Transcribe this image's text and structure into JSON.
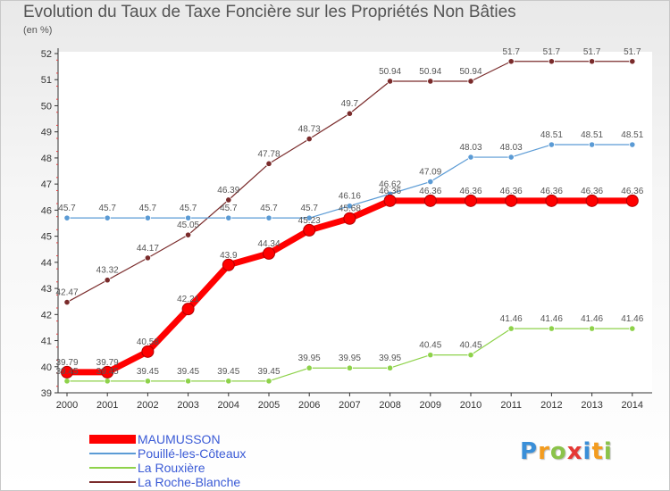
{
  "chart_data": {
    "type": "line",
    "title": "Evolution du Taux de Taxe Foncière sur les Propriétés Non Bâties",
    "ylabel": "(en %)",
    "xlabel": "",
    "ylim": [
      39,
      52
    ],
    "yticks": [
      39,
      40,
      41,
      42,
      43,
      44,
      45,
      46,
      47,
      48,
      49,
      50,
      51,
      52
    ],
    "x": [
      "2000",
      "2001",
      "2002",
      "2003",
      "2004",
      "2005",
      "2006",
      "2007",
      "2008",
      "2009",
      "2010",
      "2011",
      "2012",
      "2013",
      "2014"
    ],
    "grid": false,
    "legend_position": "bottom-left",
    "series": [
      {
        "name": "MAUMUSSON",
        "color": "#ff0000",
        "values": [
          39.79,
          39.79,
          40.58,
          42.21,
          43.9,
          44.34,
          45.23,
          45.68,
          46.36,
          46.36,
          46.36,
          46.36,
          46.36,
          46.36,
          46.36
        ],
        "labels": [
          "39.79",
          "39.79",
          "40.58",
          "42.21",
          "43.9",
          "44.34",
          "45.23",
          "45.68",
          "46.36",
          "46.36",
          "46.36",
          "46.36",
          "46.36",
          "46.36",
          "46.36"
        ]
      },
      {
        "name": "Pouillé-les-Côteaux",
        "color": "#5b9bd5",
        "values": [
          45.7,
          45.7,
          45.7,
          45.7,
          45.7,
          45.7,
          45.7,
          46.16,
          46.62,
          47.09,
          48.03,
          48.03,
          48.51,
          48.51,
          48.51
        ],
        "labels": [
          "45.7",
          "45.7",
          "45.7",
          "45.7",
          "45.7",
          "45.7",
          "45.7",
          "46.16",
          "46.62",
          "47.09",
          "48.03",
          "48.03",
          "48.51",
          "48.51",
          "48.51"
        ]
      },
      {
        "name": "La Rouxière",
        "color": "#8ed24a",
        "values": [
          39.45,
          39.45,
          39.45,
          39.45,
          39.45,
          39.45,
          39.95,
          39.95,
          39.95,
          40.45,
          40.45,
          41.46,
          41.46,
          41.46,
          41.46
        ],
        "labels": [
          "39.45",
          "39.45",
          "39.45",
          "39.45",
          "39.45",
          "39.45",
          "39.95",
          "39.95",
          "39.95",
          "40.45",
          "40.45",
          "41.46",
          "41.46",
          "41.46",
          "41.46"
        ]
      },
      {
        "name": "La Roche-Blanche",
        "color": "#7a2b2b",
        "values": [
          42.47,
          43.32,
          44.17,
          45.05,
          46.39,
          47.78,
          48.73,
          49.7,
          50.94,
          50.94,
          50.94,
          51.7,
          51.7,
          51.7,
          51.7
        ],
        "labels": [
          "42.47",
          "43.32",
          "44.17",
          "45.05",
          "46.39",
          "47.78",
          "48.73",
          "49.7",
          "50.94",
          "50.94",
          "50.94",
          "51.7",
          "51.7",
          "51.7",
          "51.7"
        ]
      }
    ]
  },
  "logo": {
    "letters": [
      "P",
      "r",
      "o",
      "x",
      "i",
      "t",
      "i"
    ],
    "colors": [
      "#3a8fd8",
      "#f39c1f",
      "#8bc34a",
      "#e53935",
      "#3a8fd8",
      "#f39c1f",
      "#8bc34a"
    ]
  }
}
